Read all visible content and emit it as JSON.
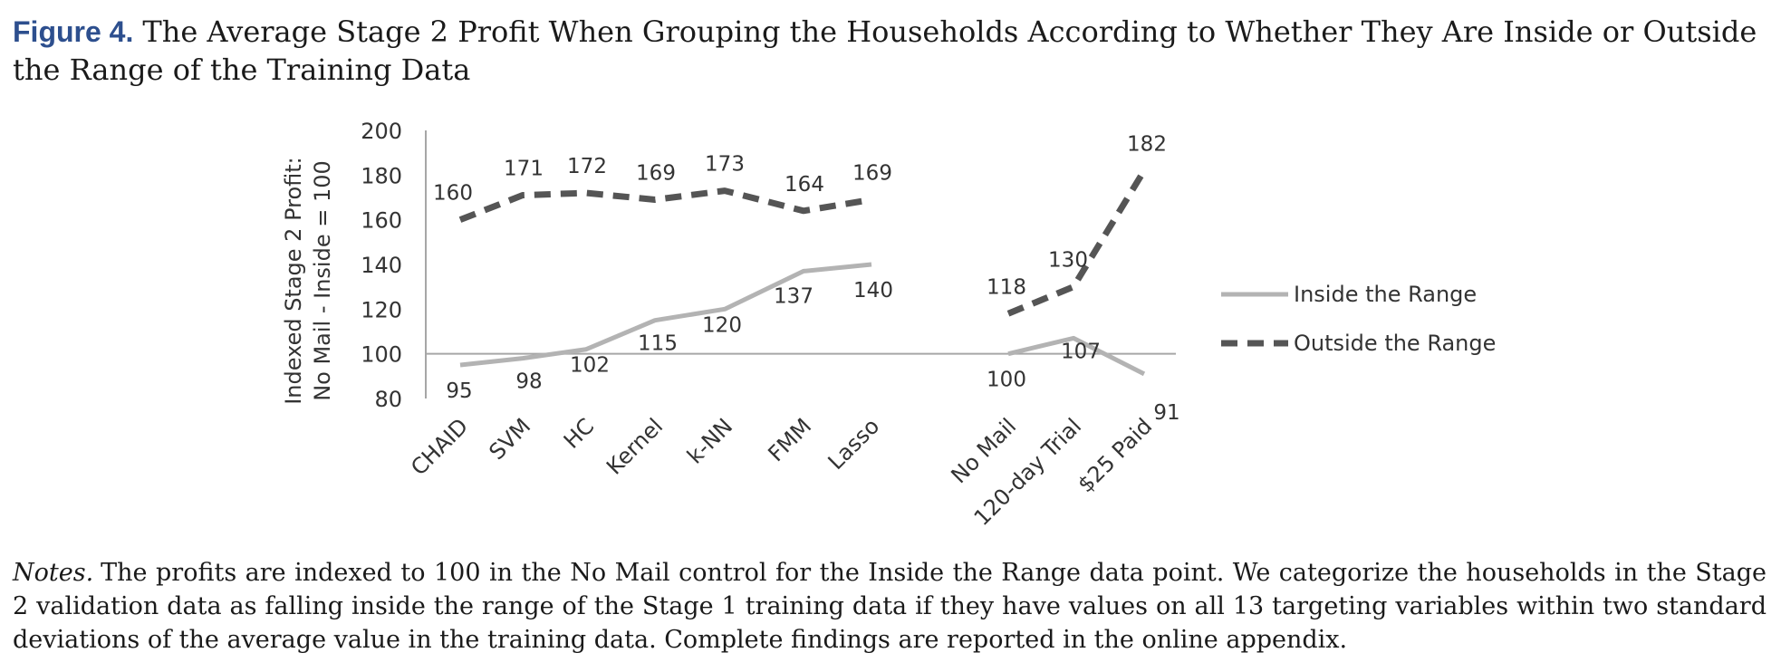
{
  "figure": {
    "label": "Figure 4.",
    "title": "The Average Stage 2 Profit When Grouping the Households According to Whether They Are Inside or Outside the Range of the Training Data"
  },
  "notes": {
    "label": "Notes.",
    "text": "The profits are indexed to 100 in the No Mail control for the Inside the Range data point. We categorize the households in the Stage 2 validation data as falling inside the range of the Stage 1 training data if they have values on all 13 targeting variables within two standard deviations of the average value in the training data. Complete findings are reported in the online appendix."
  },
  "chart_data": {
    "type": "line",
    "ylabel_line1": "Indexed Stage 2 Profit:",
    "ylabel_line2": "No Mail - Inside = 100",
    "ylim": [
      80,
      200
    ],
    "yticks": [
      80,
      100,
      120,
      140,
      160,
      180,
      200
    ],
    "reference_line": 100,
    "legend_position": "right",
    "groups": [
      {
        "categories": [
          "CHAID",
          "SVM",
          "HC",
          "Kernel",
          "k-NN",
          "FMM",
          "Lasso"
        ],
        "series": [
          {
            "name": "Inside the Range",
            "values": [
              95,
              98,
              102,
              115,
              120,
              137,
              140
            ]
          },
          {
            "name": "Outside the Range",
            "values": [
              160,
              171,
              172,
              169,
              173,
              164,
              169
            ]
          }
        ]
      },
      {
        "categories": [
          "No Mail",
          "120-day Trial",
          "$25 Paid"
        ],
        "series": [
          {
            "name": "Inside the Range",
            "values": [
              100,
              107,
              91
            ]
          },
          {
            "name": "Outside the Range",
            "values": [
              118,
              130,
              182
            ]
          }
        ]
      }
    ],
    "legend": [
      "Inside the Range",
      "Outside the Range"
    ],
    "colors": {
      "inside": "#b3b3b3",
      "outside": "#555555",
      "axis": "#a6a6a6"
    }
  }
}
